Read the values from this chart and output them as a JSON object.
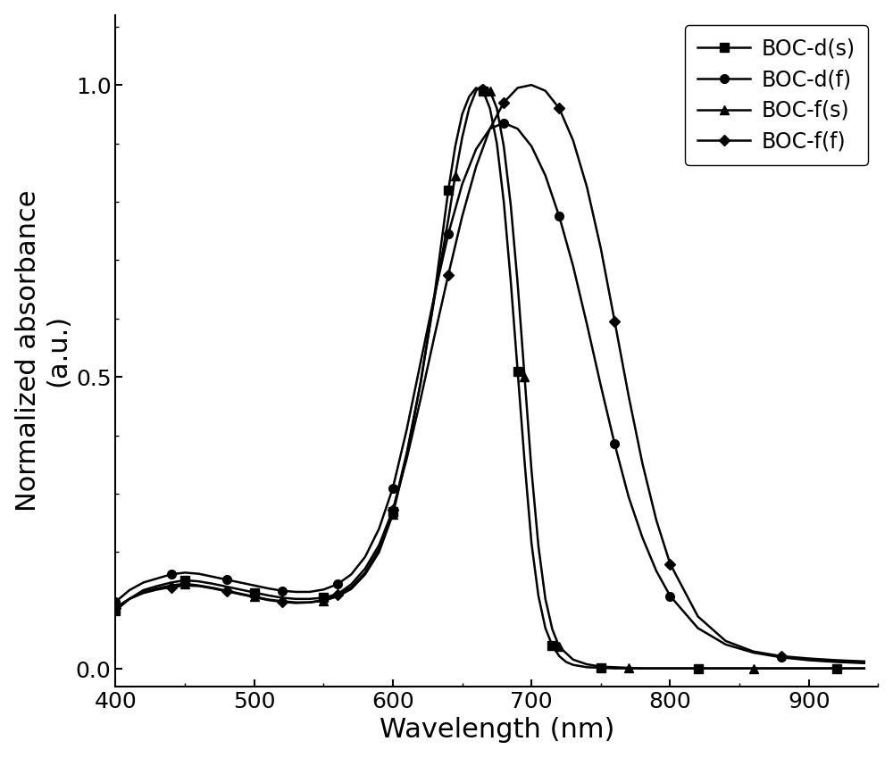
{
  "xlabel": "Wavelength (nm)",
  "ylabel_line1": "Normalized absorbance",
  "ylabel_line2": "(a.u.)",
  "xlim": [
    400,
    950
  ],
  "ylim": [
    -0.03,
    1.12
  ],
  "xticks": [
    400,
    500,
    600,
    700,
    800,
    900
  ],
  "yticks": [
    0.0,
    0.5,
    1.0
  ],
  "series": {
    "BOC-d(s)": {
      "x": [
        400,
        410,
        420,
        430,
        440,
        450,
        460,
        470,
        480,
        490,
        500,
        510,
        520,
        530,
        540,
        550,
        560,
        570,
        580,
        590,
        600,
        610,
        620,
        630,
        635,
        640,
        645,
        650,
        655,
        660,
        665,
        670,
        675,
        680,
        685,
        690,
        695,
        700,
        705,
        710,
        715,
        720,
        725,
        730,
        740,
        750,
        760,
        770,
        780,
        800,
        820,
        840,
        860,
        880,
        900,
        920,
        940
      ],
      "y": [
        0.1,
        0.12,
        0.135,
        0.142,
        0.148,
        0.152,
        0.15,
        0.146,
        0.141,
        0.136,
        0.131,
        0.126,
        0.122,
        0.12,
        0.12,
        0.122,
        0.128,
        0.14,
        0.165,
        0.205,
        0.27,
        0.37,
        0.49,
        0.64,
        0.73,
        0.82,
        0.895,
        0.95,
        0.98,
        0.995,
        0.99,
        0.96,
        0.9,
        0.8,
        0.665,
        0.51,
        0.355,
        0.215,
        0.125,
        0.07,
        0.04,
        0.022,
        0.012,
        0.007,
        0.003,
        0.002,
        0.001,
        0.001,
        0.001,
        0.001,
        0.001,
        0.001,
        0.001,
        0.001,
        0.001,
        0.001,
        0.001
      ],
      "marker": "s",
      "color": "#000000",
      "markersize": 7,
      "markevery": 5
    },
    "BOC-d(f)": {
      "x": [
        400,
        410,
        420,
        430,
        440,
        450,
        460,
        470,
        480,
        490,
        500,
        510,
        520,
        530,
        540,
        550,
        560,
        570,
        580,
        590,
        600,
        610,
        620,
        630,
        640,
        650,
        660,
        670,
        680,
        690,
        700,
        710,
        720,
        730,
        740,
        750,
        760,
        770,
        780,
        790,
        800,
        820,
        840,
        860,
        880,
        900,
        920,
        940
      ],
      "y": [
        0.115,
        0.135,
        0.148,
        0.155,
        0.162,
        0.165,
        0.163,
        0.158,
        0.153,
        0.148,
        0.143,
        0.138,
        0.134,
        0.132,
        0.132,
        0.136,
        0.145,
        0.162,
        0.192,
        0.24,
        0.31,
        0.41,
        0.525,
        0.64,
        0.745,
        0.83,
        0.89,
        0.925,
        0.935,
        0.925,
        0.895,
        0.845,
        0.775,
        0.69,
        0.59,
        0.485,
        0.385,
        0.295,
        0.225,
        0.168,
        0.125,
        0.07,
        0.042,
        0.028,
        0.02,
        0.015,
        0.012,
        0.01
      ],
      "marker": "o",
      "color": "#000000",
      "markersize": 7,
      "markevery": 4
    },
    "BOC-f(s)": {
      "x": [
        400,
        410,
        420,
        430,
        440,
        450,
        460,
        470,
        480,
        490,
        500,
        510,
        520,
        530,
        540,
        550,
        560,
        570,
        580,
        590,
        600,
        610,
        620,
        630,
        640,
        645,
        650,
        655,
        660,
        665,
        670,
        675,
        680,
        685,
        690,
        695,
        700,
        705,
        710,
        715,
        720,
        730,
        740,
        750,
        760,
        770,
        780,
        800,
        820,
        840,
        860,
        880,
        900,
        920,
        940
      ],
      "y": [
        0.105,
        0.12,
        0.132,
        0.138,
        0.143,
        0.146,
        0.143,
        0.139,
        0.134,
        0.129,
        0.124,
        0.119,
        0.116,
        0.114,
        0.114,
        0.117,
        0.124,
        0.137,
        0.162,
        0.2,
        0.265,
        0.365,
        0.49,
        0.635,
        0.77,
        0.845,
        0.91,
        0.96,
        0.99,
        1.0,
        0.99,
        0.96,
        0.895,
        0.795,
        0.66,
        0.5,
        0.34,
        0.21,
        0.12,
        0.068,
        0.038,
        0.016,
        0.008,
        0.004,
        0.003,
        0.002,
        0.001,
        0.001,
        0.001,
        0.001,
        0.001,
        0.001,
        0.001,
        0.001,
        0.001
      ],
      "marker": "^",
      "color": "#000000",
      "markersize": 7,
      "markevery": 5
    },
    "BOC-f(f)": {
      "x": [
        400,
        410,
        420,
        430,
        440,
        450,
        460,
        470,
        480,
        490,
        500,
        510,
        520,
        530,
        540,
        550,
        560,
        570,
        580,
        590,
        600,
        610,
        620,
        630,
        640,
        650,
        660,
        670,
        680,
        690,
        700,
        710,
        720,
        730,
        740,
        750,
        760,
        770,
        780,
        790,
        800,
        820,
        840,
        860,
        880,
        900,
        920,
        940
      ],
      "y": [
        0.105,
        0.12,
        0.13,
        0.136,
        0.14,
        0.143,
        0.142,
        0.138,
        0.133,
        0.128,
        0.123,
        0.118,
        0.115,
        0.113,
        0.114,
        0.118,
        0.128,
        0.145,
        0.172,
        0.212,
        0.272,
        0.36,
        0.462,
        0.57,
        0.675,
        0.775,
        0.86,
        0.925,
        0.97,
        0.995,
        1.0,
        0.99,
        0.96,
        0.905,
        0.825,
        0.72,
        0.595,
        0.468,
        0.352,
        0.255,
        0.18,
        0.09,
        0.048,
        0.03,
        0.022,
        0.018,
        0.015,
        0.013
      ],
      "marker": "D",
      "color": "#000000",
      "markersize": 6,
      "markevery": 4
    }
  },
  "linewidth": 1.8,
  "background_color": "#ffffff",
  "legend_fontsize": 17,
  "axis_label_fontsize": 22,
  "tick_fontsize": 18
}
